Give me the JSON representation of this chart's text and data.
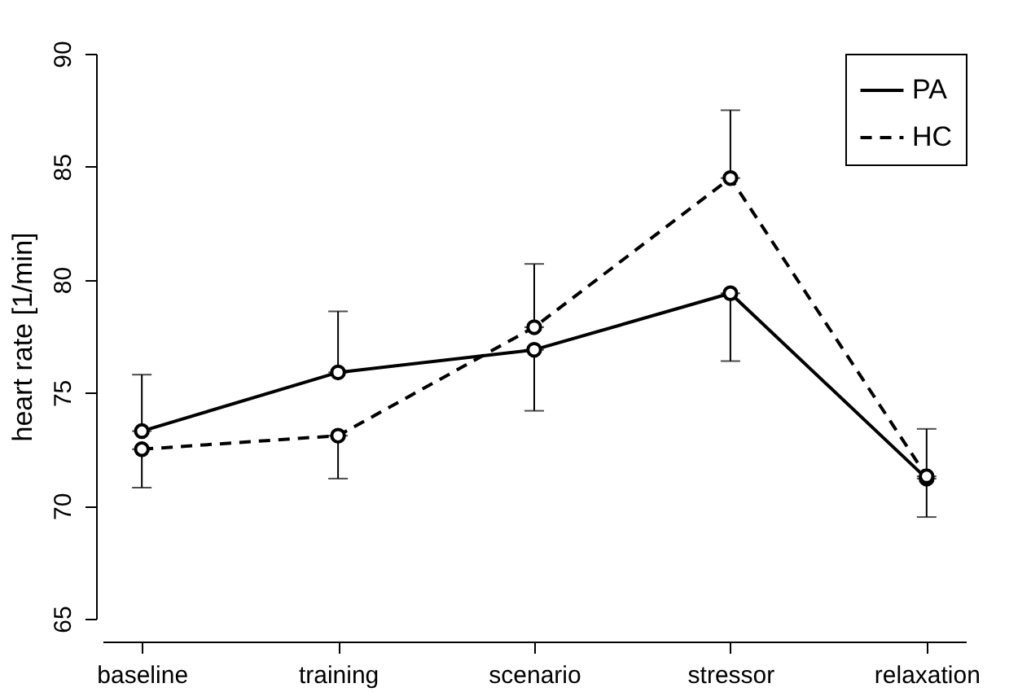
{
  "chart_data": {
    "type": "line",
    "ylabel": "heart rate [1/min]",
    "categories": [
      "baseline",
      "training",
      "scenario",
      "stressor",
      "relaxation"
    ],
    "series": [
      {
        "name": "PA",
        "color": "#000000",
        "line_style": "solid",
        "values": [
          73.3,
          75.9,
          76.9,
          79.4,
          71.2
        ],
        "errors": [
          [
            73.3,
            75.8
          ],
          [
            75.9,
            78.6
          ],
          [
            74.2,
            76.9
          ],
          [
            76.4,
            79.4
          ],
          [
            69.5,
            71.2
          ]
        ]
      },
      {
        "name": "HC",
        "color": "#000000",
        "line_style": "dashed",
        "values": [
          72.5,
          73.1,
          77.9,
          84.5,
          71.3
        ],
        "errors": [
          [
            70.8,
            72.5
          ],
          [
            71.2,
            73.1
          ],
          [
            77.9,
            80.7
          ],
          [
            84.5,
            87.5
          ],
          [
            71.3,
            73.4
          ]
        ]
      }
    ],
    "ylim": [
      65,
      90
    ],
    "yticks": [
      65,
      70,
      75,
      80,
      85,
      90
    ],
    "grid": false,
    "legend": "top right",
    "marker": "circle"
  }
}
